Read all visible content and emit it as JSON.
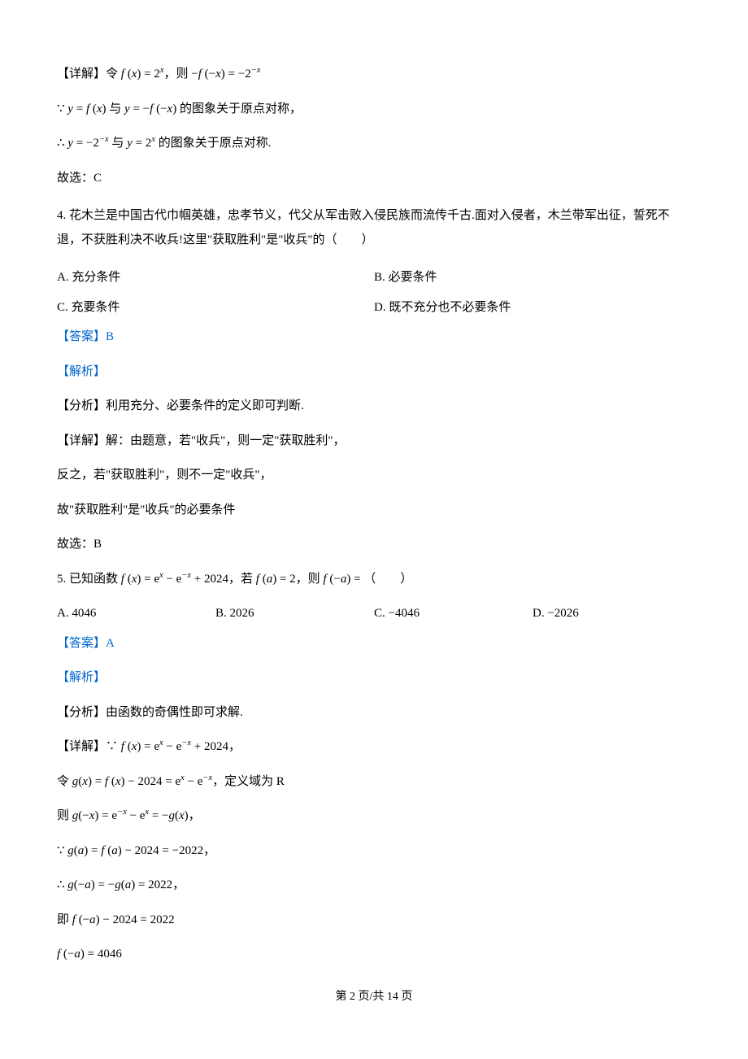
{
  "p1": "【详解】令 f(x) = 2ˣ，则 −f(−x) = −2⁻ˣ",
  "p1_math_prefix": "【详解】令 ",
  "p1_math_mid": "，则 ",
  "p2_prefix": "∵ ",
  "p2_mid": " 与 ",
  "p2_suffix": " 的图象关于原点对称，",
  "p3_prefix": "∴ ",
  "p3_mid": " 与 ",
  "p3_suffix": " 的图象关于原点对称.",
  "p4": "故选：C",
  "q4_text": "4. 花木兰是中国古代巾帼英雄，忠孝节义，代父从军击败入侵民族而流传千古.面对入侵者，木兰带军出征，誓死不退，不获胜利决不收兵!这里\"获取胜利\"是\"收兵\"的（　　）",
  "q4_optA": "A. 充分条件",
  "q4_optB": "B. 必要条件",
  "q4_optC": "C. 充要条件",
  "q4_optD": "D. 既不充分也不必要条件",
  "q4_answer": "【答案】B",
  "q4_analysis": "【解析】",
  "q4_fenxi": "【分析】利用充分、必要条件的定义即可判断.",
  "q4_detail1": "【详解】解：由题意，若\"收兵\"，则一定\"获取胜利\"，",
  "q4_detail2": "反之，若\"获取胜利\"，则不一定\"收兵\"，",
  "q4_detail3": "故\"获取胜利\"是\"收兵\"的必要条件",
  "q4_choice": "故选：B",
  "q5_prefix": "5. 已知函数 ",
  "q5_mid1": "，若 ",
  "q5_mid2": "，则 ",
  "q5_suffix": "（　　）",
  "q5_optA": "A. 4046",
  "q5_optB": "B. 2026",
  "q5_optC": "C. −4046",
  "q5_optD": "D. −2026",
  "q5_answer": "【答案】A",
  "q5_analysis": "【解析】",
  "q5_fenxi": "【分析】由函数的奇偶性即可求解.",
  "q5_d1_prefix": "【详解】∵ ",
  "q5_d1_suffix": "，",
  "q5_d2_prefix": "令 ",
  "q5_d2_suffix": "，定义域为",
  "q5_d3_prefix": "则 ",
  "q5_d3_suffix": "，",
  "q5_d4_prefix": "∵ ",
  "q5_d4_suffix": "，",
  "q5_d5_prefix": "∴ ",
  "q5_d5_suffix": "，",
  "q5_d6_prefix": "即 ",
  "footer": "第 2 页/共 14 页",
  "colors": {
    "text": "#000000",
    "link": "#0066cc",
    "background": "#ffffff"
  }
}
